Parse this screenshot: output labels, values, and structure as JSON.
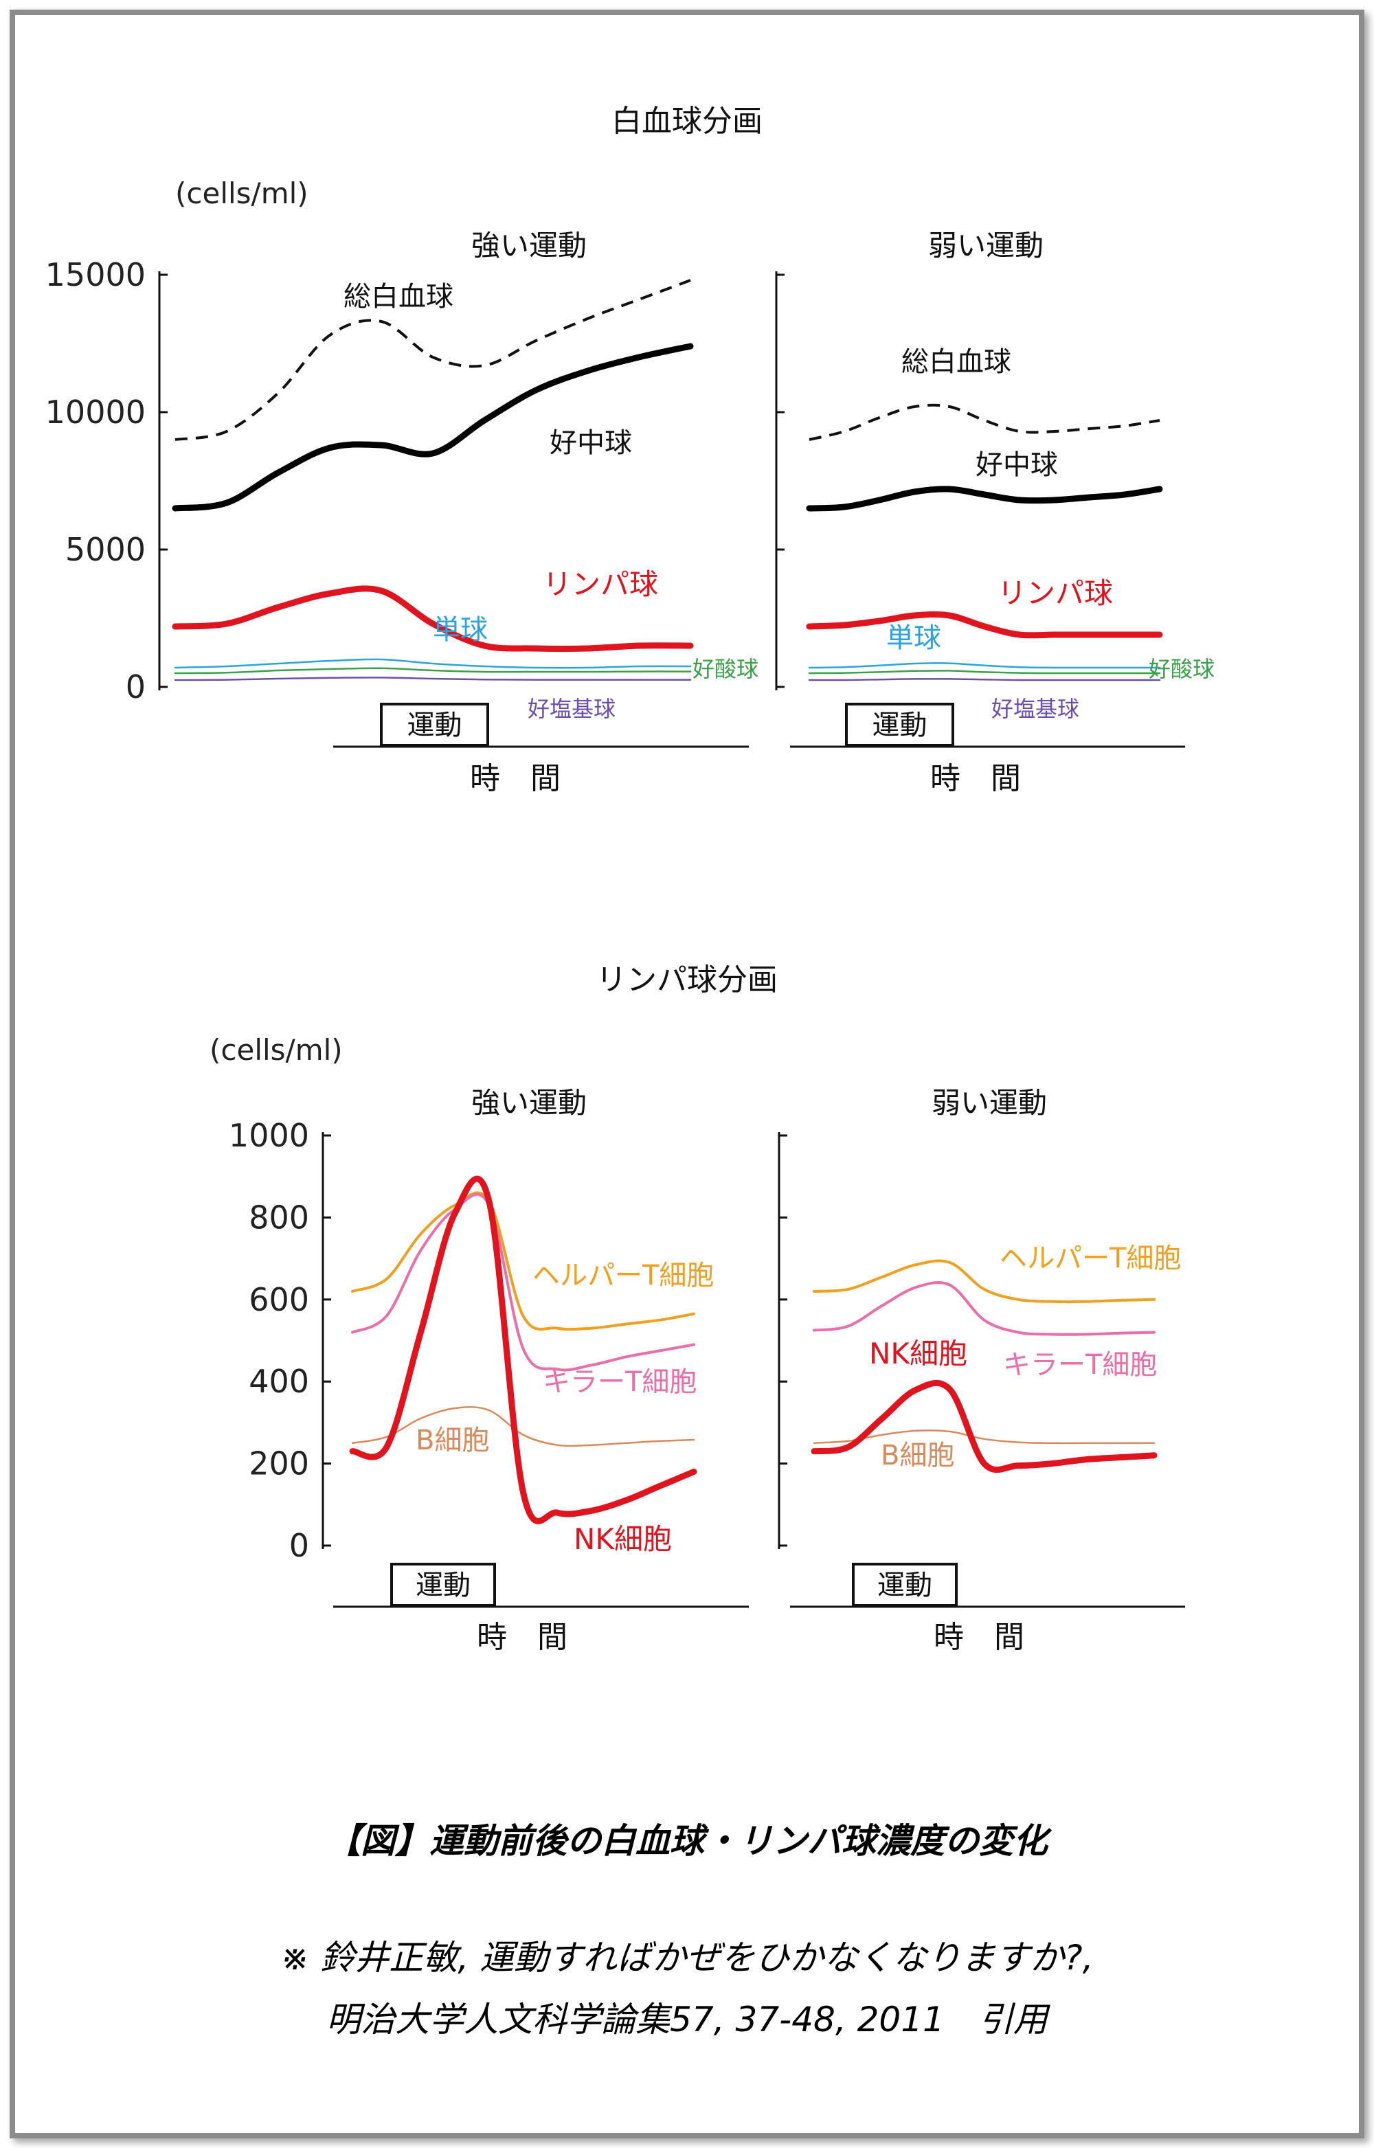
{
  "section1": {
    "title": "白血球分画"
  },
  "section2": {
    "title": "リンパ球分画"
  },
  "caption": "【図】運動前後の白血球・リンパ球濃度の変化",
  "reference": {
    "line1": "※ 鈴井正敏, 運動すればかぜをひかなくなりますか?,",
    "line2": "明治大学人文科学論集57, 37-48, 2011　引用"
  },
  "colors": {
    "total_wbc": "#111111",
    "neutrophil": "#000000",
    "lymphocyte": "#e0141e",
    "monocyte": "#2aa3e0",
    "eosinophil": "#3aa04a",
    "basophil": "#6a4fb0",
    "helper_t": "#f0a020",
    "killer_t": "#ea6fa8",
    "b_cell": "#d98a5c",
    "nk_cell": "#e0141e"
  },
  "chart_data": [
    {
      "type": "line",
      "group": "白血球分画",
      "title": "強い運動",
      "unit": "(cells/ml)",
      "xlabel": "時　間",
      "exercise_label": "運動",
      "ylim": [
        0,
        15000
      ],
      "yticks": [
        "0",
        "5000",
        "10000",
        "15000"
      ],
      "x": [
        0,
        10,
        20,
        30,
        40,
        50,
        60,
        70,
        80,
        90,
        100
      ],
      "series": [
        {
          "name": "総白血球",
          "style": "dashed",
          "color": "#111111",
          "values": [
            9000,
            9300,
            10700,
            12800,
            13300,
            12000,
            11700,
            12600,
            13400,
            14100,
            14800
          ]
        },
        {
          "name": "好中球",
          "style": "thick",
          "color": "#000000",
          "values": [
            6500,
            6700,
            7800,
            8700,
            8800,
            8500,
            9700,
            10800,
            11500,
            12000,
            12400
          ]
        },
        {
          "name": "リンパ球",
          "style": "thick",
          "color": "#e0141e",
          "values": [
            2200,
            2300,
            2900,
            3400,
            3500,
            2300,
            1500,
            1400,
            1400,
            1500,
            1500
          ]
        },
        {
          "name": "単球",
          "style": "thin",
          "color": "#2aa3e0",
          "values": [
            700,
            750,
            850,
            950,
            1000,
            850,
            750,
            700,
            700,
            750,
            750
          ]
        },
        {
          "name": "好酸球",
          "style": "thin",
          "color": "#3aa04a",
          "values": [
            500,
            520,
            600,
            650,
            680,
            600,
            550,
            550,
            550,
            560,
            560
          ]
        },
        {
          "name": "好塩基球",
          "style": "thin",
          "color": "#6a4fb0",
          "values": [
            250,
            260,
            300,
            330,
            340,
            300,
            270,
            260,
            260,
            260,
            260
          ]
        }
      ]
    },
    {
      "type": "line",
      "group": "白血球分画",
      "title": "弱い運動",
      "xlabel": "時　間",
      "exercise_label": "運動",
      "ylim": [
        0,
        15000
      ],
      "x": [
        0,
        10,
        20,
        30,
        40,
        50,
        60,
        70,
        80,
        90,
        100
      ],
      "series": [
        {
          "name": "総白血球",
          "style": "dashed",
          "color": "#111111",
          "values": [
            9000,
            9300,
            9800,
            10200,
            10200,
            9700,
            9300,
            9300,
            9400,
            9500,
            9700
          ]
        },
        {
          "name": "好中球",
          "style": "thick",
          "color": "#000000",
          "values": [
            6500,
            6550,
            6800,
            7100,
            7200,
            7000,
            6800,
            6800,
            6900,
            7000,
            7200
          ]
        },
        {
          "name": "リンパ球",
          "style": "thick",
          "color": "#e0141e",
          "values": [
            2200,
            2250,
            2400,
            2600,
            2600,
            2200,
            1900,
            1900,
            1900,
            1900,
            1900
          ]
        },
        {
          "name": "単球",
          "style": "thin",
          "color": "#2aa3e0",
          "values": [
            700,
            720,
            780,
            850,
            860,
            780,
            720,
            700,
            700,
            700,
            700
          ]
        },
        {
          "name": "好酸球",
          "style": "thin",
          "color": "#3aa04a",
          "values": [
            500,
            510,
            540,
            580,
            590,
            540,
            510,
            500,
            500,
            500,
            500
          ]
        },
        {
          "name": "好塩基球",
          "style": "thin",
          "color": "#6a4fb0",
          "values": [
            250,
            250,
            270,
            290,
            290,
            270,
            250,
            250,
            250,
            250,
            250
          ]
        }
      ]
    },
    {
      "type": "line",
      "group": "リンパ球分画",
      "title": "強い運動",
      "unit": "(cells/ml)",
      "xlabel": "時　間",
      "exercise_label": "運動",
      "ylim": [
        0,
        1000
      ],
      "yticks": [
        "0",
        "200",
        "400",
        "600",
        "800",
        "1000"
      ],
      "x": [
        0,
        10,
        20,
        30,
        40,
        50,
        60,
        70,
        80,
        90,
        100
      ],
      "series": [
        {
          "name": "ヘルパーT細胞",
          "style": "medium",
          "color": "#f0a020",
          "values": [
            620,
            650,
            760,
            830,
            840,
            560,
            530,
            530,
            540,
            550,
            565
          ]
        },
        {
          "name": "キラーT細胞",
          "style": "medium",
          "color": "#ea6fa8",
          "values": [
            520,
            560,
            720,
            820,
            830,
            480,
            430,
            440,
            460,
            475,
            490
          ]
        },
        {
          "name": "B細胞",
          "style": "thin",
          "color": "#d98a5c",
          "values": [
            250,
            265,
            310,
            335,
            330,
            270,
            245,
            245,
            250,
            255,
            258
          ]
        },
        {
          "name": "NK細胞",
          "style": "thick",
          "color": "#e0141e",
          "values": [
            230,
            240,
            520,
            810,
            840,
            130,
            80,
            85,
            110,
            145,
            180
          ]
        }
      ]
    },
    {
      "type": "line",
      "group": "リンパ球分画",
      "title": "弱い運動",
      "xlabel": "時　間",
      "exercise_label": "運動",
      "ylim": [
        0,
        1000
      ],
      "x": [
        0,
        10,
        20,
        30,
        40,
        50,
        60,
        70,
        80,
        90,
        100
      ],
      "series": [
        {
          "name": "ヘルパーT細胞",
          "style": "medium",
          "color": "#f0a020",
          "values": [
            620,
            625,
            655,
            685,
            690,
            625,
            600,
            595,
            595,
            598,
            600
          ]
        },
        {
          "name": "キラーT細胞",
          "style": "medium",
          "color": "#ea6fa8",
          "values": [
            525,
            535,
            585,
            630,
            635,
            550,
            520,
            515,
            515,
            518,
            520
          ]
        },
        {
          "name": "B細胞",
          "style": "thin",
          "color": "#d98a5c",
          "values": [
            250,
            255,
            270,
            280,
            278,
            260,
            252,
            250,
            250,
            250,
            250
          ]
        },
        {
          "name": "NK細胞",
          "style": "thick",
          "color": "#e0141e",
          "values": [
            230,
            240,
            310,
            380,
            380,
            200,
            195,
            200,
            210,
            215,
            220
          ]
        }
      ]
    }
  ]
}
